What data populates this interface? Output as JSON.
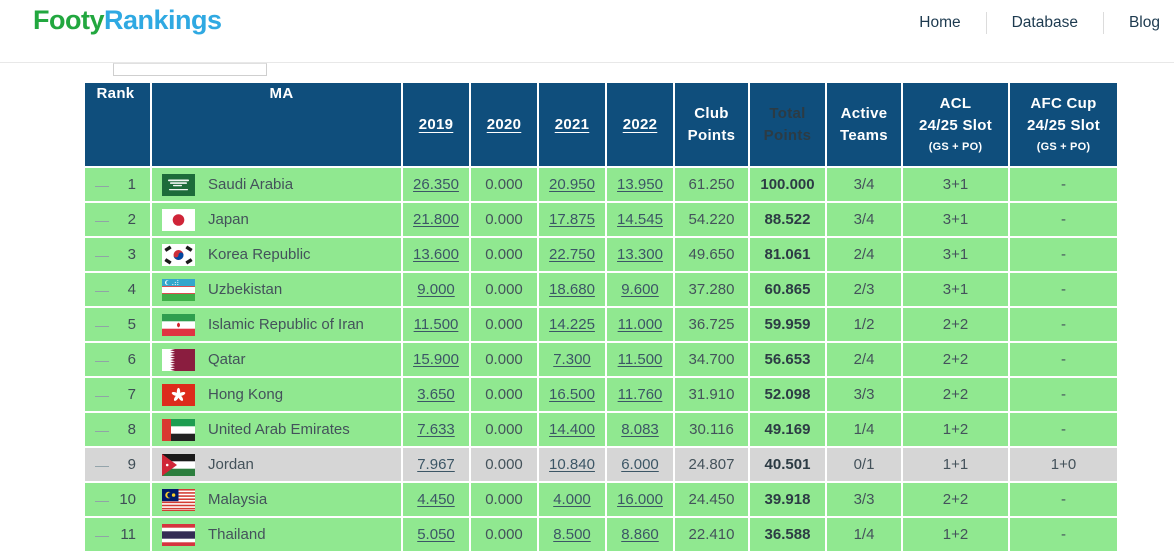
{
  "brand": {
    "name": "FootyRankings",
    "part1": "Footy",
    "part2": "Rankings"
  },
  "nav": {
    "items": [
      {
        "label": "Home"
      },
      {
        "label": "Database"
      },
      {
        "label": "Blog"
      }
    ]
  },
  "colors": {
    "header_blue": "#0f4e7c",
    "row_green": "#90e890",
    "row_gray": "#d6d6d6",
    "logo_green": "#22a73f",
    "logo_blue": "#2fa9e2",
    "link_text": "#3c5666"
  },
  "table": {
    "headers": {
      "rank": "Rank",
      "ma": "MA",
      "y2019": "2019",
      "y2020": "2020",
      "y2021": "2021",
      "y2022": "2022",
      "club_points": "Club Points",
      "total_points": "Total Points",
      "active_teams": "Active Teams",
      "acl_line1": "ACL",
      "acl_line2": "24/25 Slot",
      "acl_sub": "(GS + PO)",
      "afc_line1": "AFC Cup",
      "afc_line2": "24/25 Slot",
      "afc_sub": "(GS + PO)"
    },
    "rows": [
      {
        "move": "—",
        "rank": "1",
        "flag": "saudi-arabia",
        "name": "Saudi Arabia",
        "y2019": "26.350",
        "y2020": "0.000",
        "y2021": "20.950",
        "y2022": "13.950",
        "club": "61.250",
        "total": "100.000",
        "active": "3/4",
        "acl": "3+1",
        "afc": "-",
        "highlight": false
      },
      {
        "move": "—",
        "rank": "2",
        "flag": "japan",
        "name": "Japan",
        "y2019": "21.800",
        "y2020": "0.000",
        "y2021": "17.875",
        "y2022": "14.545",
        "club": "54.220",
        "total": "88.522",
        "active": "3/4",
        "acl": "3+1",
        "afc": "-",
        "highlight": false
      },
      {
        "move": "—",
        "rank": "3",
        "flag": "korea-republic",
        "name": "Korea Republic",
        "y2019": "13.600",
        "y2020": "0.000",
        "y2021": "22.750",
        "y2022": "13.300",
        "club": "49.650",
        "total": "81.061",
        "active": "2/4",
        "acl": "3+1",
        "afc": "-",
        "highlight": false
      },
      {
        "move": "—",
        "rank": "4",
        "flag": "uzbekistan",
        "name": "Uzbekistan",
        "y2019": "9.000",
        "y2020": "0.000",
        "y2021": "18.680",
        "y2022": "9.600",
        "club": "37.280",
        "total": "60.865",
        "active": "2/3",
        "acl": "3+1",
        "afc": "-",
        "highlight": false
      },
      {
        "move": "—",
        "rank": "5",
        "flag": "iran",
        "name": "Islamic Republic of Iran",
        "y2019": "11.500",
        "y2020": "0.000",
        "y2021": "14.225",
        "y2022": "11.000",
        "club": "36.725",
        "total": "59.959",
        "active": "1/2",
        "acl": "2+2",
        "afc": "-",
        "highlight": false
      },
      {
        "move": "—",
        "rank": "6",
        "flag": "qatar",
        "name": "Qatar",
        "y2019": "15.900",
        "y2020": "0.000",
        "y2021": "7.300",
        "y2022": "11.500",
        "club": "34.700",
        "total": "56.653",
        "active": "2/4",
        "acl": "2+2",
        "afc": "-",
        "highlight": false
      },
      {
        "move": "—",
        "rank": "7",
        "flag": "hong-kong",
        "name": "Hong Kong",
        "y2019": "3.650",
        "y2020": "0.000",
        "y2021": "16.500",
        "y2022": "11.760",
        "club": "31.910",
        "total": "52.098",
        "active": "3/3",
        "acl": "2+2",
        "afc": "-",
        "highlight": false
      },
      {
        "move": "—",
        "rank": "8",
        "flag": "uae",
        "name": "United Arab Emirates",
        "y2019": "7.633",
        "y2020": "0.000",
        "y2021": "14.400",
        "y2022": "8.083",
        "club": "30.116",
        "total": "49.169",
        "active": "1/4",
        "acl": "1+2",
        "afc": "-",
        "highlight": false
      },
      {
        "move": "—",
        "rank": "9",
        "flag": "jordan",
        "name": "Jordan",
        "y2019": "7.967",
        "y2020": "0.000",
        "y2021": "10.840",
        "y2022": "6.000",
        "club": "24.807",
        "total": "40.501",
        "active": "0/1",
        "acl": "1+1",
        "afc": "1+0",
        "highlight": true
      },
      {
        "move": "—",
        "rank": "10",
        "flag": "malaysia",
        "name": "Malaysia",
        "y2019": "4.450",
        "y2020": "0.000",
        "y2021": "4.000",
        "y2022": "16.000",
        "club": "24.450",
        "total": "39.918",
        "active": "3/3",
        "acl": "2+2",
        "afc": "-",
        "highlight": false
      },
      {
        "move": "—",
        "rank": "11",
        "flag": "thailand",
        "name": "Thailand",
        "y2019": "5.050",
        "y2020": "0.000",
        "y2021": "8.500",
        "y2022": "8.860",
        "club": "22.410",
        "total": "36.588",
        "active": "1/4",
        "acl": "1+2",
        "afc": "-",
        "highlight": false
      }
    ]
  }
}
